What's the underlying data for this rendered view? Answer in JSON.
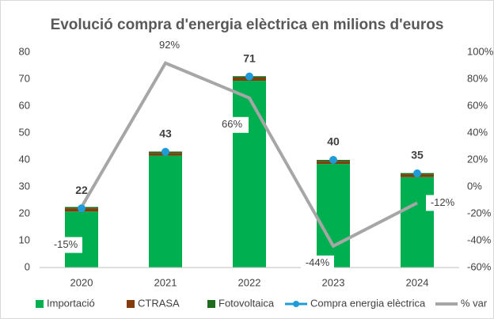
{
  "chart_data": {
    "type": "bar",
    "stacked": true,
    "title": "Evolució compra d'energia elèctrica en milions d'euros",
    "categories": [
      "2020",
      "2021",
      "2022",
      "2023",
      "2024"
    ],
    "series": [
      {
        "name": "Importació",
        "type": "bar",
        "color": "#00b050",
        "values": [
          20.8,
          41.6,
          69.4,
          38.5,
          33.6
        ]
      },
      {
        "name": "CTRASA",
        "type": "bar",
        "color": "#843c0c",
        "values": [
          1.2,
          1.0,
          1.2,
          1.0,
          1.0
        ]
      },
      {
        "name": "Fotovoltaica",
        "type": "bar",
        "color": "#1e6b1e",
        "values": [
          0.5,
          0.5,
          0.5,
          0.5,
          0.5
        ]
      },
      {
        "name": "Compra energia elèctrica",
        "type": "marker",
        "color": "#1f9bd7",
        "values": [
          22,
          43,
          71,
          40,
          35
        ]
      },
      {
        "name": "% var",
        "type": "line",
        "axis": "y2",
        "color": "#a6a6a6",
        "values": [
          -15,
          92,
          66,
          -44,
          -12
        ],
        "value_labels": [
          "-15%",
          "92%",
          "66%",
          "-44%",
          "-12%"
        ]
      }
    ],
    "ylim": [
      0,
      80
    ],
    "yticks": [
      0,
      10,
      20,
      30,
      40,
      50,
      60,
      70,
      80
    ],
    "y2lim": [
      -60,
      100
    ],
    "y2ticks": [
      {
        "value": -60,
        "label": "-60%"
      },
      {
        "value": -40,
        "label": "-40%"
      },
      {
        "value": -20,
        "label": "-20%"
      },
      {
        "value": 0,
        "label": "0%"
      },
      {
        "value": 20,
        "label": "20%"
      },
      {
        "value": 40,
        "label": "40%"
      },
      {
        "value": 60,
        "label": "60%"
      },
      {
        "value": 80,
        "label": "80%"
      },
      {
        "value": 100,
        "label": "100%"
      }
    ],
    "grid": false,
    "legend": "bottom"
  }
}
